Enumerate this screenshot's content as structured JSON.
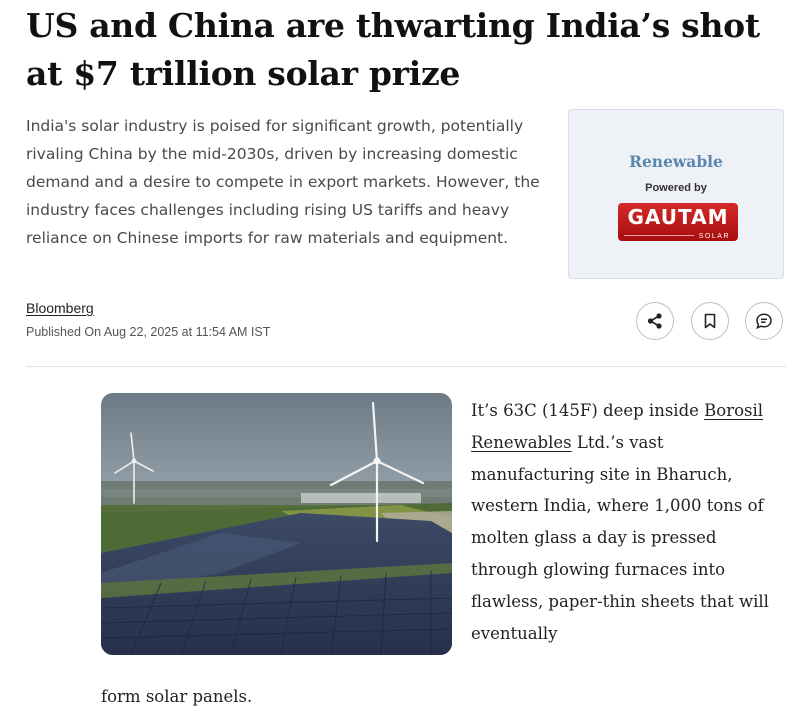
{
  "article": {
    "headline": "US and China are thwarting India’s shot at $7 trillion solar prize",
    "summary": "India's solar industry is poised for significant growth, potentially rivaling China by the mid-2030s, driven by increasing domestic demand and a desire to compete in export markets. However, the industry faces challenges including rising US tariffs and heavy reliance on Chinese imports for raw materials and equipment.",
    "source": "Bloomberg",
    "published": "Published On Aug 22, 2025 at 11:54 AM IST",
    "body_intro": "It’s 63C (145F) deep inside ",
    "body_link": "Borosil Renewables",
    "body_rest": " Ltd.’s vast manufacturing site in Bharuch, western India, where 1,000 tons of molten glass a day is pressed through glowing furnaces into flawless, paper-thin sheets that will eventually",
    "body_last": "form solar panels."
  },
  "sponsor": {
    "label": "Renewable",
    "powered_by": "Powered by",
    "logo_text": "GAUTAM",
    "logo_subtext": "SOLAR"
  },
  "actions": [
    {
      "name": "share",
      "icon": "share-icon"
    },
    {
      "name": "bookmark",
      "icon": "bookmark-icon"
    },
    {
      "name": "comment",
      "icon": "comment-icon"
    }
  ],
  "colors": {
    "sponsor_label": "#5b86b0",
    "logo_red": "#c41e1e",
    "sponsor_bg": "#eef1f6"
  }
}
